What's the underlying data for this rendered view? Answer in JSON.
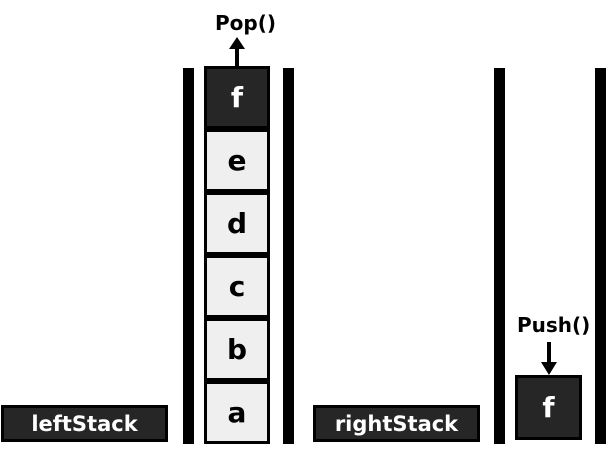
{
  "left_stack": {
    "name": "leftStack",
    "items": [
      "f",
      "e",
      "d",
      "c",
      "b",
      "a"
    ]
  },
  "right_stack": {
    "name": "rightStack",
    "items": [
      "f"
    ]
  },
  "operations": {
    "pop": "Pop()",
    "push": "Push()"
  },
  "colors": {
    "cell_fill": "#efefef",
    "cell_dark_fill": "#262626",
    "wall": "#000000"
  }
}
